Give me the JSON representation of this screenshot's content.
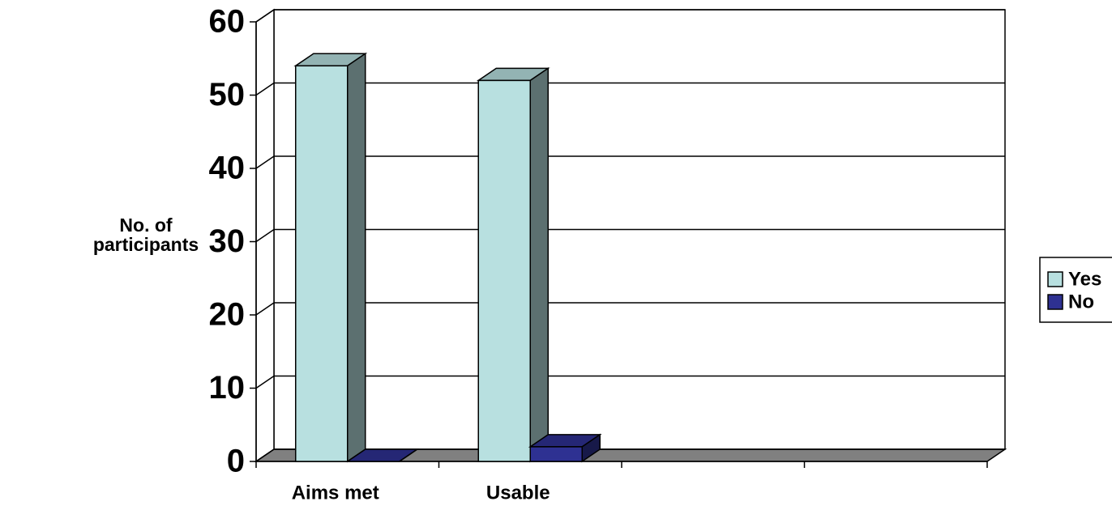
{
  "chart_data": {
    "type": "bar",
    "ylabel": [
      "No. of",
      "participants"
    ],
    "categories": [
      "Aims met",
      "Usable",
      null,
      null
    ],
    "series": [
      {
        "name": "Yes",
        "color": "#b8e0e0",
        "values": [
          54,
          52,
          null,
          null
        ]
      },
      {
        "name": "No",
        "color": "#2e3192",
        "values": [
          0,
          2,
          null,
          null
        ]
      }
    ],
    "ylim": [
      0,
      60
    ],
    "yticks": [
      0,
      10,
      20,
      30,
      40,
      50,
      60
    ],
    "grid": true,
    "legend": "right"
  }
}
